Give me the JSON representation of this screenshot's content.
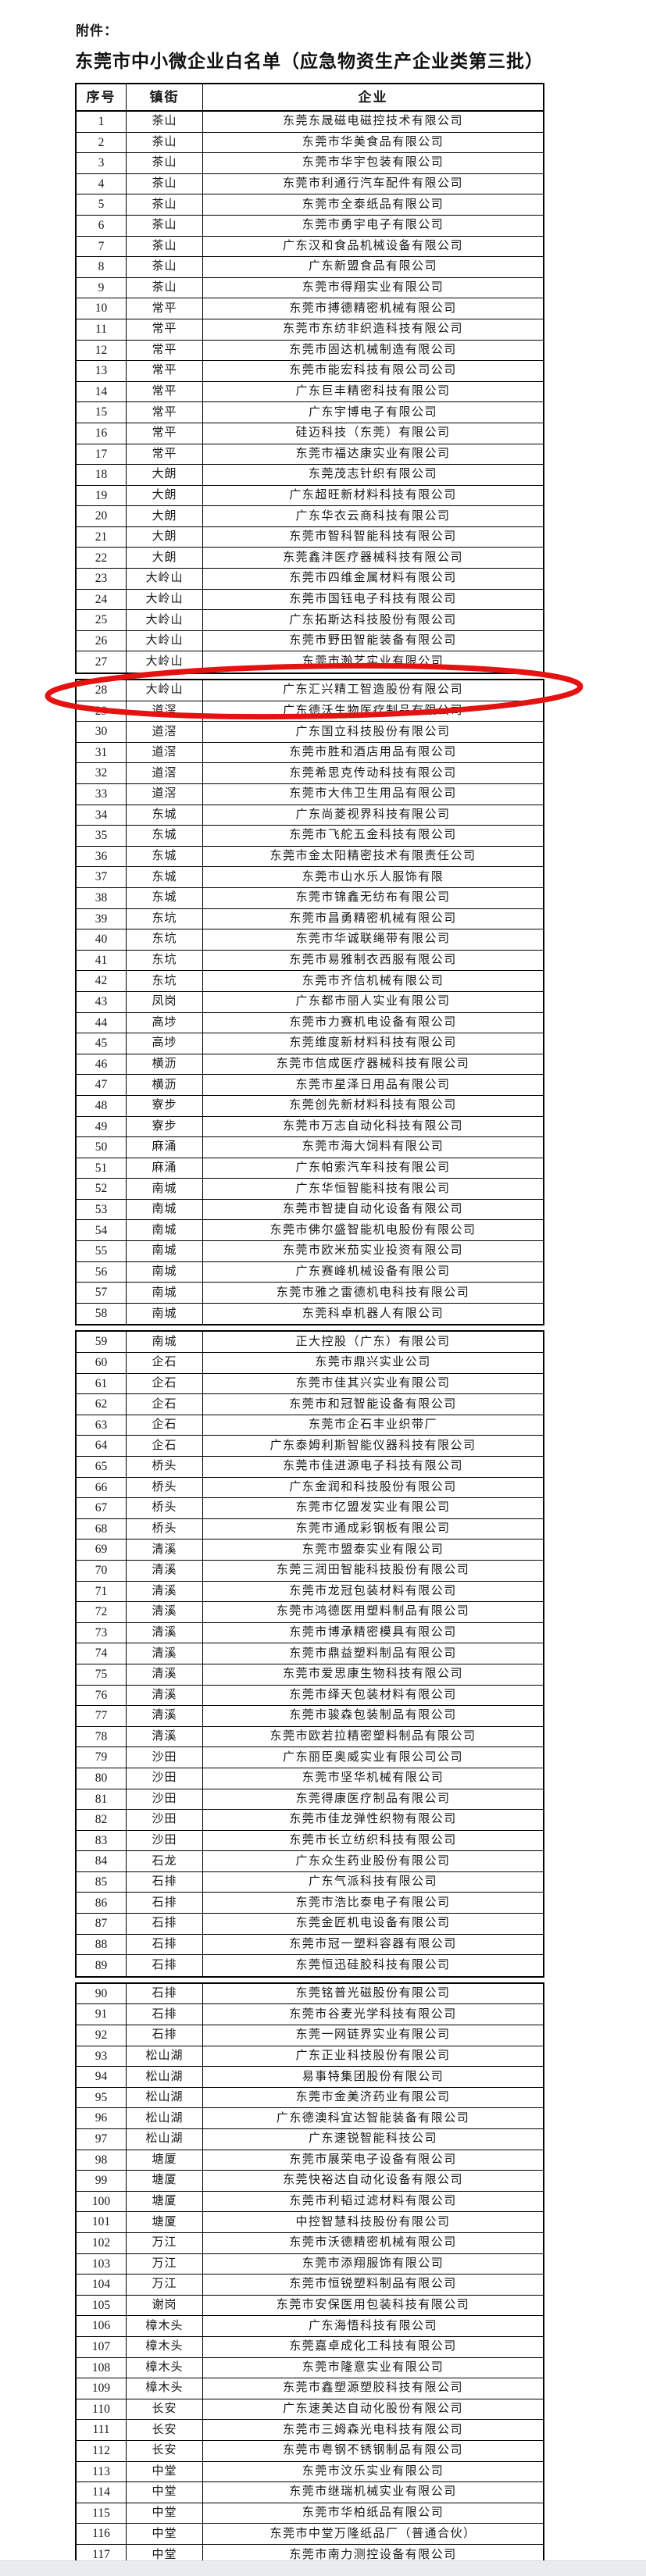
{
  "page": {
    "attachment_label": "附件：",
    "title": "东莞市中小微企业白名单（应急物资生产企业类第三批）"
  },
  "table": {
    "headers": [
      "序号",
      "镇街",
      "企业"
    ],
    "page_break_after": [
      27,
      58,
      89
    ],
    "highlight": {
      "row": 28,
      "color": "#e51212"
    },
    "rows": [
      [
        1,
        "茶山",
        "东莞东晟磁电磁控技术有限公司"
      ],
      [
        2,
        "茶山",
        "东莞市华美食品有限公司"
      ],
      [
        3,
        "茶山",
        "东莞市华宇包装有限公司"
      ],
      [
        4,
        "茶山",
        "东莞市利通行汽车配件有限公司"
      ],
      [
        5,
        "茶山",
        "东莞市全泰纸品有限公司"
      ],
      [
        6,
        "茶山",
        "东莞市勇宇电子有限公司"
      ],
      [
        7,
        "茶山",
        "广东汉和食品机械设备有限公司"
      ],
      [
        8,
        "茶山",
        "广东新盟食品有限公司"
      ],
      [
        9,
        "茶山",
        "东莞市得翔实业有限公司"
      ],
      [
        10,
        "常平",
        "东莞市搏德精密机械有限公司"
      ],
      [
        11,
        "常平",
        "东莞市东纺非织造科技有限公司"
      ],
      [
        12,
        "常平",
        "东莞市固达机械制造有限公司"
      ],
      [
        13,
        "常平",
        "东莞市能宏科技有限公司公司"
      ],
      [
        14,
        "常平",
        "广东巨丰精密科技有限公司"
      ],
      [
        15,
        "常平",
        "广东宇博电子有限公司"
      ],
      [
        16,
        "常平",
        "硅迈科技（东莞）有限公司"
      ],
      [
        17,
        "常平",
        "东莞市福达康实业有限公司"
      ],
      [
        18,
        "大朗",
        "东莞茂志针织有限公司"
      ],
      [
        19,
        "大朗",
        "广东超旺新材料科技有限公司"
      ],
      [
        20,
        "大朗",
        "广东华衣云商科技有限公司"
      ],
      [
        21,
        "大朗",
        "东莞市智科智能科技有限公司"
      ],
      [
        22,
        "大朗",
        "东莞鑫沣医疗器械科技有限公司"
      ],
      [
        23,
        "大岭山",
        "东莞市四维金属材料有限公司"
      ],
      [
        24,
        "大岭山",
        "东莞市国钰电子科技有限公司"
      ],
      [
        25,
        "大岭山",
        "广东拓斯达科技股份有限公司"
      ],
      [
        26,
        "大岭山",
        "东莞市野田智能装备有限公司"
      ],
      [
        27,
        "大岭山",
        "东莞市瀚艺实业有限公司"
      ],
      [
        28,
        "大岭山",
        "广东汇兴精工智造股份有限公司"
      ],
      [
        29,
        "道滘",
        "广东德沃生物医疗制品有限公司"
      ],
      [
        30,
        "道滘",
        "广东国立科技股份有限公司"
      ],
      [
        31,
        "道滘",
        "东莞市胜和酒店用品有限公司"
      ],
      [
        32,
        "道滘",
        "东莞希思克传动科技有限公司"
      ],
      [
        33,
        "道滘",
        "东莞市大伟卫生用品有限公司"
      ],
      [
        34,
        "东城",
        "广东尚菱视界科技有限公司"
      ],
      [
        35,
        "东城",
        "东莞市飞舵五金科技有限公司"
      ],
      [
        36,
        "东城",
        "东莞市金太阳精密技术有限责任公司"
      ],
      [
        37,
        "东城",
        "东莞市山水乐人服饰有限"
      ],
      [
        38,
        "东城",
        "东莞市锦鑫无纺布有限公司"
      ],
      [
        39,
        "东坑",
        "东莞市昌勇精密机械有限公司"
      ],
      [
        40,
        "东坑",
        "东莞市华诚联绳带有限公司"
      ],
      [
        41,
        "东坑",
        "东莞市易雅制衣西服有限公司"
      ],
      [
        42,
        "东坑",
        "东莞市齐信机械有限公司"
      ],
      [
        43,
        "凤岗",
        "广东都市丽人实业有限公司"
      ],
      [
        44,
        "高埗",
        "东莞市力赛机电设备有限公司"
      ],
      [
        45,
        "高埗",
        "东莞维度新材料科技有限公司"
      ],
      [
        46,
        "横沥",
        "东莞市信成医疗器械科技有限公司"
      ],
      [
        47,
        "横沥",
        "东莞市星泽日用品有限公司"
      ],
      [
        48,
        "寮步",
        "东莞创先新材料科技有限公司"
      ],
      [
        49,
        "寮步",
        "东莞市万志自动化科技有限公司"
      ],
      [
        50,
        "麻涌",
        "东莞市海大饲料有限公司"
      ],
      [
        51,
        "麻涌",
        "广东帕索汽车科技有限公司"
      ],
      [
        52,
        "南城",
        "广东华恒智能科技有限公司"
      ],
      [
        53,
        "南城",
        "东莞市智捷自动化设备有限公司"
      ],
      [
        54,
        "南城",
        "东莞市佛尔盛智能机电股份有限公司"
      ],
      [
        55,
        "南城",
        "东莞市欧米茄实业投资有限公司"
      ],
      [
        56,
        "南城",
        "广东赛峰机械设备有限公司"
      ],
      [
        57,
        "南城",
        "东莞市雅之雷德机电科技有限公司"
      ],
      [
        58,
        "南城",
        "东莞科卓机器人有限公司"
      ],
      [
        59,
        "南城",
        "正大控股（广东）有限公司"
      ],
      [
        60,
        "企石",
        "东莞市鼎兴实业公司"
      ],
      [
        61,
        "企石",
        "东莞市佳其兴实业有限公司"
      ],
      [
        62,
        "企石",
        "东莞市和冠智能设备有限公司"
      ],
      [
        63,
        "企石",
        "东莞市企石丰业织带厂"
      ],
      [
        64,
        "企石",
        "广东泰姆利斯智能仪器科技有限公司"
      ],
      [
        65,
        "桥头",
        "东莞市佳进源电子科技有限公司"
      ],
      [
        66,
        "桥头",
        "广东金润和科技股份有限公司"
      ],
      [
        67,
        "桥头",
        "东莞市亿盟发实业有限公司"
      ],
      [
        68,
        "桥头",
        "东莞市通成彩钢板有限公司"
      ],
      [
        69,
        "清溪",
        "东莞市盟泰实业有限公司"
      ],
      [
        70,
        "清溪",
        "东莞三润田智能科技股份有限公司"
      ],
      [
        71,
        "清溪",
        "东莞市龙冠包装材料有限公司"
      ],
      [
        72,
        "清溪",
        "东莞市鸿德医用塑料制品有限公司"
      ],
      [
        73,
        "清溪",
        "东莞市博承精密模具有限公司"
      ],
      [
        74,
        "清溪",
        "东莞市鼎益塑料制品有限公司"
      ],
      [
        75,
        "清溪",
        "东莞市爱思康生物科技有限公司"
      ],
      [
        76,
        "清溪",
        "东莞市绎天包装材料有限公司"
      ],
      [
        77,
        "清溪",
        "东莞市骏森包装制品有限公司"
      ],
      [
        78,
        "清溪",
        "东莞市欧若拉精密塑料制品有限公司"
      ],
      [
        79,
        "沙田",
        "广东丽臣奥威实业有限公司公司"
      ],
      [
        80,
        "沙田",
        "东莞市坚华机械有限公司"
      ],
      [
        81,
        "沙田",
        "东莞得康医疗制品有限公司"
      ],
      [
        82,
        "沙田",
        "东莞市佳龙弹性织物有限公司"
      ],
      [
        83,
        "沙田",
        "东莞市长立纺织科技有限公司"
      ],
      [
        84,
        "石龙",
        "广东众生药业股份有限公司"
      ],
      [
        85,
        "石排",
        "广东气派科技有限公司"
      ],
      [
        86,
        "石排",
        "东莞市浩比泰电子有限公司"
      ],
      [
        87,
        "石排",
        "东莞金匠机电设备有限公司"
      ],
      [
        88,
        "石排",
        "东莞市冠一塑料容器有限公司"
      ],
      [
        89,
        "石排",
        "东莞恒迅硅胶科技有限公司"
      ],
      [
        90,
        "石排",
        "东莞铭普光磁股份有限公司"
      ],
      [
        91,
        "石排",
        "东莞市谷麦光学科技有限公司"
      ],
      [
        92,
        "石排",
        "东莞一网链界实业有限公司"
      ],
      [
        93,
        "松山湖",
        "广东正业科技股份有限公司"
      ],
      [
        94,
        "松山湖",
        "易事特集团股份有限公司"
      ],
      [
        95,
        "松山湖",
        "东莞市金美济药业有限公司"
      ],
      [
        96,
        "松山湖",
        "广东德澳科宜达智能装备有限公司"
      ],
      [
        97,
        "松山湖",
        "广东速锐智能科技公司"
      ],
      [
        98,
        "塘厦",
        "东莞市展荣电子设备有限公司"
      ],
      [
        99,
        "塘厦",
        "东莞快裕达自动化设备有限公司"
      ],
      [
        100,
        "塘厦",
        "东莞市利韬过滤材料有限公司"
      ],
      [
        101,
        "塘厦",
        "中控智慧科技股份有限公司"
      ],
      [
        102,
        "万江",
        "东莞市沃德精密机械有限公司"
      ],
      [
        103,
        "万江",
        "东莞市添翔服饰有限公司"
      ],
      [
        104,
        "万江",
        "东莞市恒锐塑料制品有限公司"
      ],
      [
        105,
        "谢岗",
        "东莞市安保医用包装科技有限公司"
      ],
      [
        106,
        "樟木头",
        "广东海悟科技有限公司"
      ],
      [
        107,
        "樟木头",
        "东莞嘉卓成化工科技有限公司"
      ],
      [
        108,
        "樟木头",
        "东莞市隆意实业有限公司"
      ],
      [
        109,
        "樟木头",
        "东莞市鑫塑源塑胶科技有限公司"
      ],
      [
        110,
        "长安",
        "广东速美达自动化股份有限公司"
      ],
      [
        111,
        "长安",
        "东莞市三姆森光电科技有限公司"
      ],
      [
        112,
        "长安",
        "东莞市粤钢不锈钢制品有限公司"
      ],
      [
        113,
        "中堂",
        "东莞市汶乐实业有限公司"
      ],
      [
        114,
        "中堂",
        "东莞市继瑞机械实业有限公司"
      ],
      [
        115,
        "中堂",
        "东莞市华柏纸品有限公司"
      ],
      [
        116,
        "中堂",
        "东莞市中堂万隆纸品厂（普通合伙）"
      ],
      [
        117,
        "中堂",
        "东莞市南力测控设备有限公司"
      ]
    ]
  }
}
